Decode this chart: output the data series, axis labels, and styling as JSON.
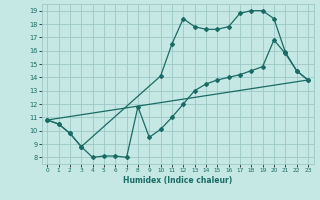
{
  "xlabel": "Humidex (Indice chaleur)",
  "bg_color": "#c5e8e5",
  "grid_color": "#9dc8c5",
  "line_color": "#1a6b65",
  "xlim": [
    -0.5,
    23.5
  ],
  "ylim": [
    7.5,
    19.5
  ],
  "yticks": [
    8,
    9,
    10,
    11,
    12,
    13,
    14,
    15,
    16,
    17,
    18,
    19
  ],
  "xticks": [
    0,
    1,
    2,
    3,
    4,
    5,
    6,
    7,
    8,
    9,
    10,
    11,
    12,
    13,
    14,
    15,
    16,
    17,
    18,
    19,
    20,
    21,
    22,
    23
  ],
  "line1_x": [
    0,
    1,
    2,
    3,
    10,
    11,
    12,
    13,
    14,
    15,
    16,
    17,
    18,
    19,
    20,
    21,
    22,
    23
  ],
  "line1_y": [
    10.8,
    10.5,
    9.8,
    8.8,
    14.1,
    16.5,
    18.4,
    17.8,
    17.6,
    17.6,
    17.8,
    18.8,
    19.0,
    19.0,
    18.4,
    15.9,
    14.5,
    13.8
  ],
  "line2_x": [
    0,
    1,
    2,
    3,
    4,
    5,
    6,
    7,
    8,
    9,
    10,
    11,
    12,
    13,
    14,
    15,
    16,
    17,
    18,
    19,
    20,
    21,
    22,
    23
  ],
  "line2_y": [
    10.8,
    10.5,
    9.8,
    8.8,
    8.0,
    8.1,
    8.1,
    8.0,
    11.8,
    9.5,
    10.1,
    11.0,
    12.0,
    13.0,
    13.5,
    13.8,
    14.0,
    14.2,
    14.5,
    14.8,
    16.8,
    15.8,
    14.5,
    13.8
  ],
  "line3_x": [
    0,
    23
  ],
  "line3_y": [
    10.8,
    13.8
  ],
  "marker_size": 2.0,
  "linewidth": 0.9
}
